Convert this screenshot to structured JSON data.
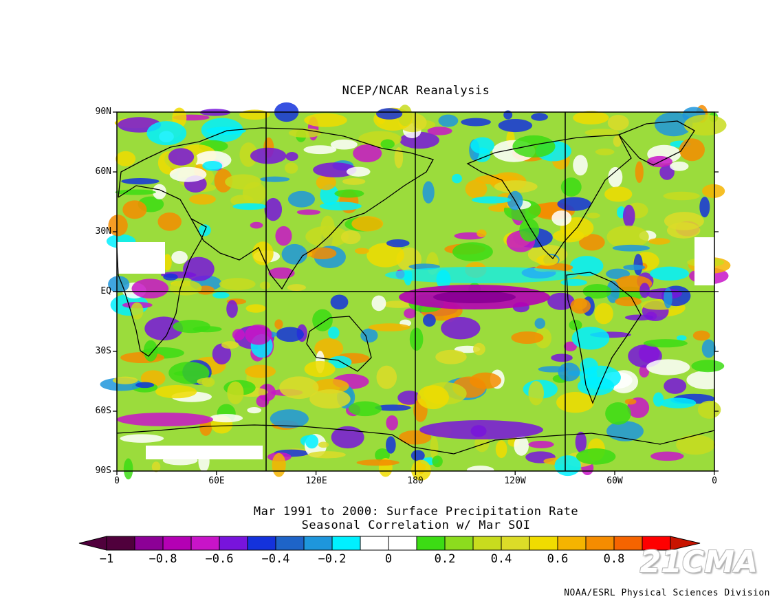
{
  "title": "NCEP/NCAR Reanalysis",
  "caption_line1": "Mar 1991 to 2000: Surface Precipitation Rate",
  "caption_line2": "Seasonal Correlation w/ Mar SOI",
  "credit": "NOAA/ESRL Physical Sciences Division",
  "watermark": "21CMA",
  "lat_ticks": [
    "90N",
    "60N",
    "30N",
    "EQ",
    "30S",
    "60S",
    "90S"
  ],
  "lon_ticks": [
    "0",
    "60E",
    "120E",
    "180",
    "120W",
    "60W",
    "0"
  ],
  "colorbar": {
    "tick_labels": [
      "−1",
      "−0.8",
      "−0.6",
      "−0.4",
      "−0.2",
      "0",
      "0.2",
      "0.4",
      "0.6",
      "0.8",
      "1"
    ],
    "colors": [
      "#50003c",
      "#8c0096",
      "#b400b4",
      "#c814c8",
      "#7814dc",
      "#1432dc",
      "#1e64c8",
      "#1e96dc",
      "#00f0ff",
      "#ffffff",
      "#ffffff",
      "#3cdc14",
      "#8cdc1e",
      "#c8dc1e",
      "#dcdc28",
      "#f0dc00",
      "#f5b400",
      "#f58c00",
      "#f56400",
      "#ff0000"
    ],
    "min_color": "#50003c",
    "max_color": "#c81400"
  }
}
